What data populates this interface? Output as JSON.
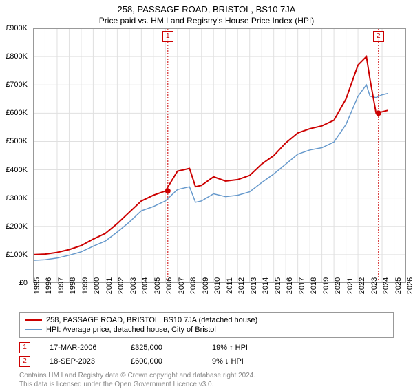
{
  "title": "258, PASSAGE ROAD, BRISTOL, BS10 7JA",
  "subtitle": "Price paid vs. HM Land Registry's House Price Index (HPI)",
  "chart": {
    "type": "line",
    "background_color": "#ffffff",
    "grid_color": "#e0e0e0",
    "ylim": [
      0,
      900000
    ],
    "ytick_step": 100000,
    "y_labels": [
      "£0",
      "£100K",
      "£200K",
      "£300K",
      "£400K",
      "£500K",
      "£600K",
      "£700K",
      "£800K",
      "£900K"
    ],
    "xlim": [
      1995,
      2026
    ],
    "x_labels": [
      "1995",
      "1996",
      "1997",
      "1998",
      "1999",
      "2000",
      "2001",
      "2002",
      "2003",
      "2004",
      "2005",
      "2006",
      "2007",
      "2008",
      "2009",
      "2010",
      "2011",
      "2012",
      "2013",
      "2014",
      "2015",
      "2016",
      "2017",
      "2018",
      "2019",
      "2020",
      "2021",
      "2022",
      "2023",
      "2024",
      "2025",
      "2026"
    ],
    "series": [
      {
        "name": "258, PASSAGE ROAD, BRISTOL, BS10 7JA (detached house)",
        "color": "#cc0000",
        "line_width": 2,
        "data": [
          [
            1995,
            100000
          ],
          [
            1996,
            102000
          ],
          [
            1997,
            108000
          ],
          [
            1998,
            118000
          ],
          [
            1999,
            132000
          ],
          [
            2000,
            155000
          ],
          [
            2001,
            175000
          ],
          [
            2002,
            210000
          ],
          [
            2003,
            250000
          ],
          [
            2004,
            290000
          ],
          [
            2005,
            310000
          ],
          [
            2006,
            325000
          ],
          [
            2007,
            395000
          ],
          [
            2008,
            405000
          ],
          [
            2008.5,
            340000
          ],
          [
            2009,
            345000
          ],
          [
            2010,
            375000
          ],
          [
            2011,
            360000
          ],
          [
            2012,
            365000
          ],
          [
            2013,
            380000
          ],
          [
            2014,
            420000
          ],
          [
            2015,
            450000
          ],
          [
            2016,
            495000
          ],
          [
            2017,
            530000
          ],
          [
            2018,
            545000
          ],
          [
            2019,
            555000
          ],
          [
            2020,
            575000
          ],
          [
            2021,
            650000
          ],
          [
            2022,
            770000
          ],
          [
            2022.7,
            800000
          ],
          [
            2023,
            720000
          ],
          [
            2023.5,
            600000
          ],
          [
            2024,
            605000
          ],
          [
            2024.5,
            610000
          ]
        ]
      },
      {
        "name": "HPI: Average price, detached house, City of Bristol",
        "color": "#6699cc",
        "line_width": 1.5,
        "data": [
          [
            1995,
            80000
          ],
          [
            1996,
            82000
          ],
          [
            1997,
            88000
          ],
          [
            1998,
            98000
          ],
          [
            1999,
            110000
          ],
          [
            2000,
            130000
          ],
          [
            2001,
            148000
          ],
          [
            2002,
            180000
          ],
          [
            2003,
            215000
          ],
          [
            2004,
            255000
          ],
          [
            2005,
            270000
          ],
          [
            2006,
            290000
          ],
          [
            2007,
            330000
          ],
          [
            2008,
            340000
          ],
          [
            2008.5,
            285000
          ],
          [
            2009,
            290000
          ],
          [
            2010,
            315000
          ],
          [
            2011,
            305000
          ],
          [
            2012,
            310000
          ],
          [
            2013,
            322000
          ],
          [
            2014,
            355000
          ],
          [
            2015,
            385000
          ],
          [
            2016,
            420000
          ],
          [
            2017,
            455000
          ],
          [
            2018,
            470000
          ],
          [
            2019,
            478000
          ],
          [
            2020,
            498000
          ],
          [
            2021,
            560000
          ],
          [
            2022,
            660000
          ],
          [
            2022.7,
            700000
          ],
          [
            2023,
            660000
          ],
          [
            2023.5,
            655000
          ],
          [
            2024,
            665000
          ],
          [
            2024.5,
            670000
          ]
        ]
      }
    ],
    "markers": [
      {
        "id": "1",
        "x": 2006.2,
        "y": 325000,
        "color": "#cc0000",
        "line_dash": "2,2"
      },
      {
        "id": "2",
        "x": 2023.7,
        "y": 600000,
        "color": "#cc0000",
        "line_dash": "2,2"
      }
    ]
  },
  "legend": {
    "items": [
      {
        "label": "258, PASSAGE ROAD, BRISTOL, BS10 7JA (detached house)",
        "color": "#cc0000"
      },
      {
        "label": "HPI: Average price, detached house, City of Bristol",
        "color": "#6699cc"
      }
    ]
  },
  "datapoints": [
    {
      "id": "1",
      "date": "17-MAR-2006",
      "price": "£325,000",
      "delta": "19% ↑ HPI",
      "color": "#cc0000"
    },
    {
      "id": "2",
      "date": "18-SEP-2023",
      "price": "£600,000",
      "delta": "9% ↓ HPI",
      "color": "#cc0000"
    }
  ],
  "footer": {
    "line1": "Contains HM Land Registry data © Crown copyright and database right 2024.",
    "line2": "This data is licensed under the Open Government Licence v3.0."
  }
}
